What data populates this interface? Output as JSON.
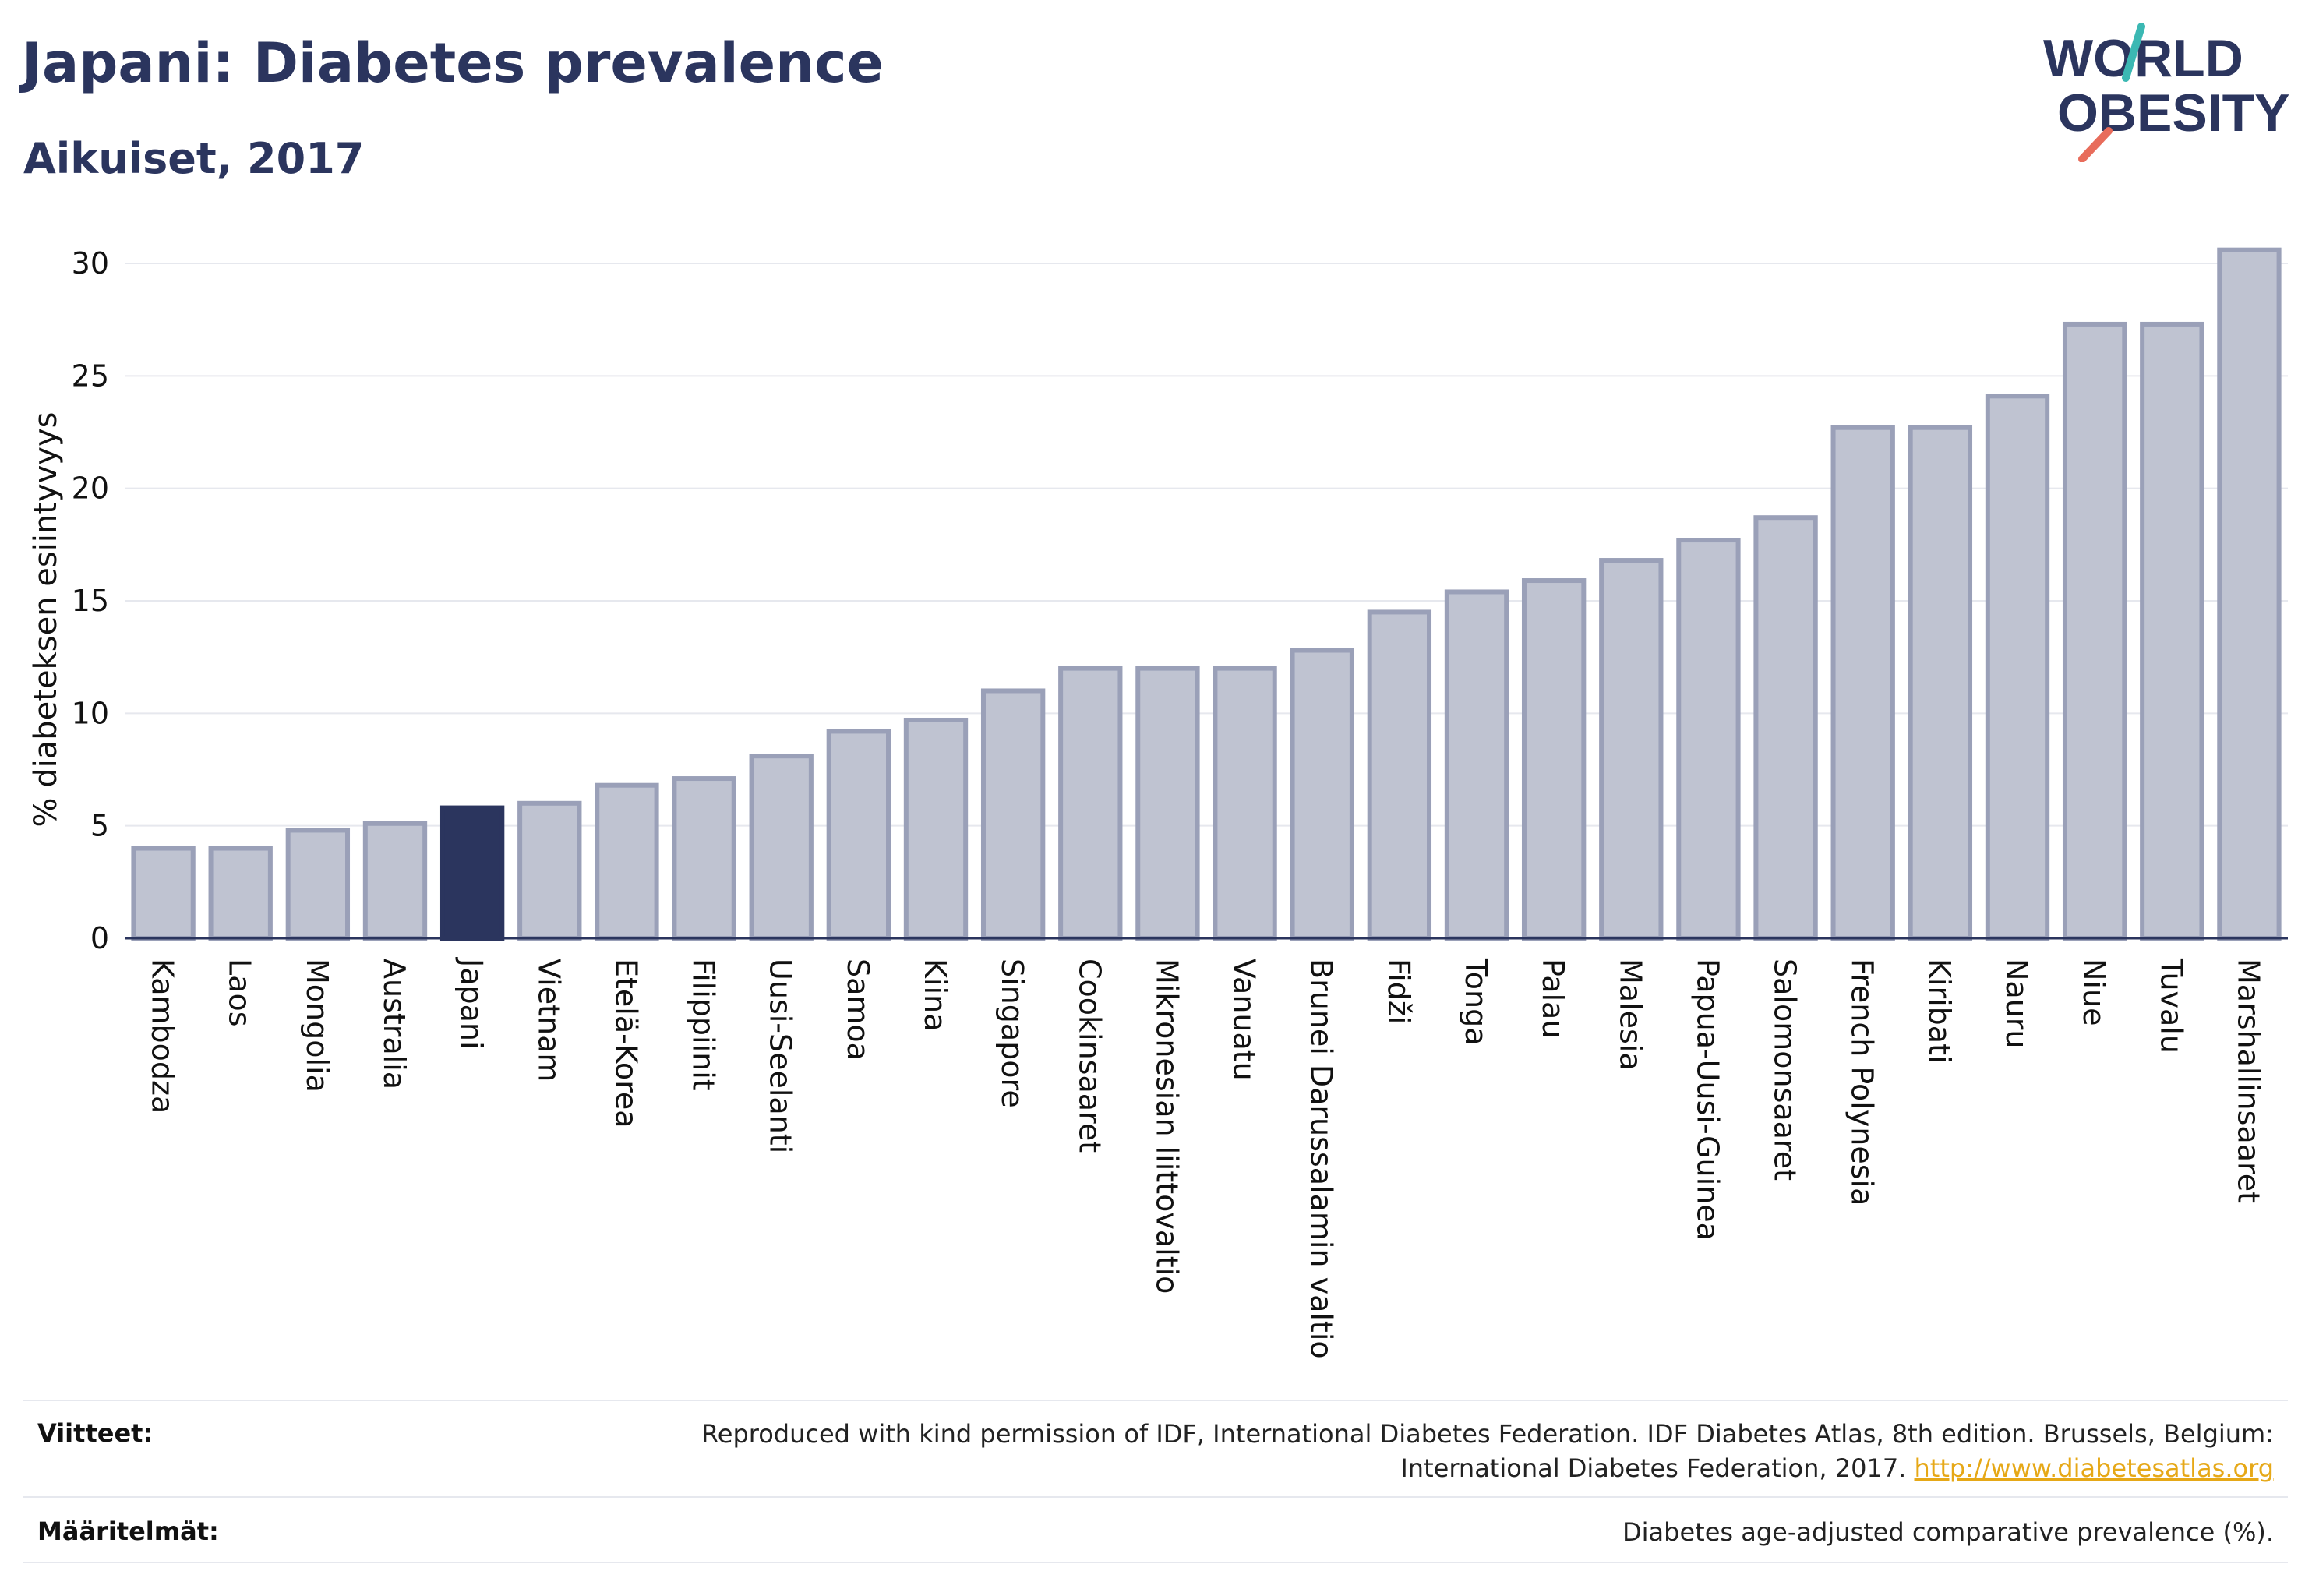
{
  "header": {
    "title": "Japani: Diabetes prevalence",
    "subtitle": "Aikuiset, 2017"
  },
  "logo": {
    "line1": "WORLD",
    "line2": "OBESITY",
    "accent_teal": "#3bb8b3",
    "accent_coral": "#e86c5b"
  },
  "colors": {
    "bar_fill": "#bfc3d1",
    "bar_stroke": "#9aa0b8",
    "highlight": "#2b355e",
    "grid": "#e6e8ee",
    "axis": "#2b355e"
  },
  "chart_data": {
    "type": "bar",
    "ylabel": "% diabeteksen esiintyvyys",
    "ylim": [
      0,
      31
    ],
    "yticks": [
      0,
      5,
      10,
      15,
      20,
      25,
      30
    ],
    "highlight": "Japani",
    "grid": true,
    "categories": [
      "Kambodza",
      "Laos",
      "Mongolia",
      "Australia",
      "Japani",
      "Vietnam",
      "Etelä-Korea",
      "Filippiinit",
      "Uusi-Seelanti",
      "Samoa",
      "Kiina",
      "Singapore",
      "Cookinsaaret",
      "Mikronesian liittovaltio",
      "Vanuatu",
      "Brunei Darussalamin valtio",
      "Fidži",
      "Tonga",
      "Palau",
      "Malesia",
      "Papua-Uusi-Guinea",
      "Salomonsaaret",
      "French Polynesia",
      "Kiribati",
      "Nauru",
      "Niue",
      "Tuvalu",
      "Marshallinsaaret"
    ],
    "values": [
      4.0,
      4.0,
      4.8,
      5.1,
      5.8,
      6.0,
      6.8,
      7.1,
      8.1,
      9.2,
      9.7,
      11.0,
      12.0,
      12.0,
      12.0,
      12.8,
      14.5,
      15.4,
      15.9,
      16.8,
      17.7,
      18.7,
      22.7,
      22.7,
      24.1,
      27.3,
      27.3,
      30.6
    ]
  },
  "footer": {
    "sources_label": "Viitteet:",
    "sources_line1": "Reproduced with kind permission of IDF, International Diabetes Federation. IDF Diabetes Atlas, 8th edition. Brussels, Belgium:",
    "sources_line2": "International Diabetes Federation, 2017.",
    "sources_link": "http://www.diabetesatlas.org",
    "definitions_label": "Määritelmät:",
    "definitions_text": "Diabetes age-adjusted comparative prevalence (%)."
  }
}
